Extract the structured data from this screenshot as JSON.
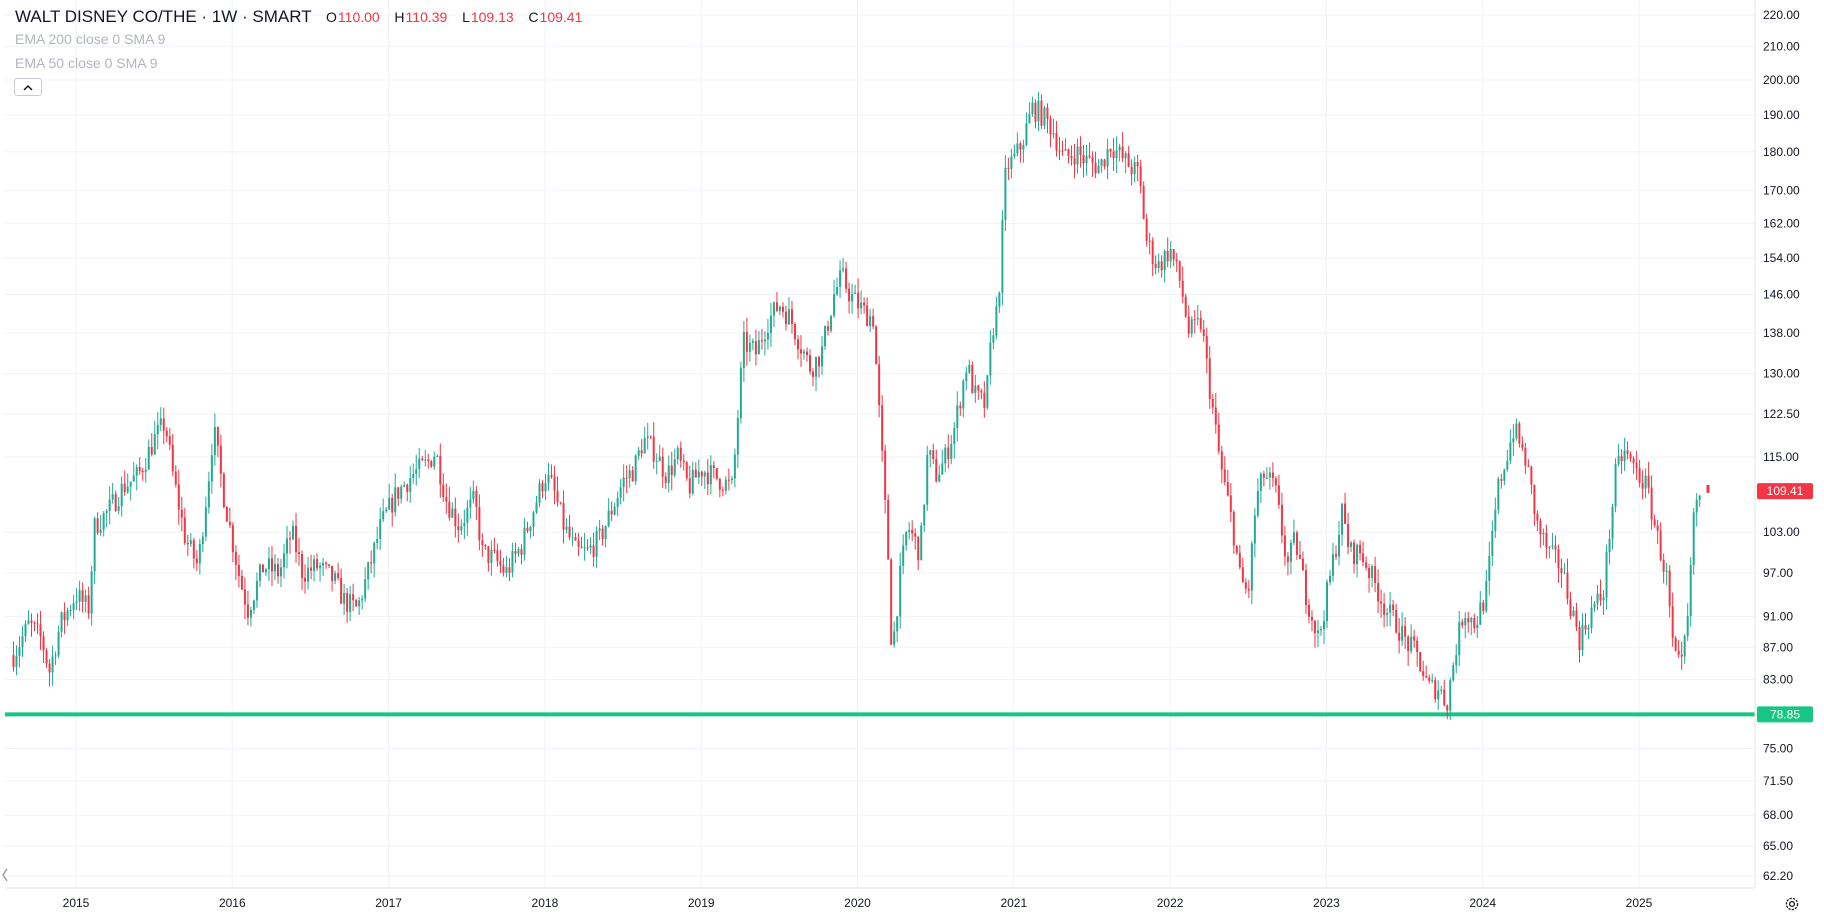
{
  "header": {
    "symbol": "WALT DISNEY CO/THE · 1W · SMART",
    "ohlc": [
      {
        "key": "O",
        "value": "110.00"
      },
      {
        "key": "H",
        "value": "110.39"
      },
      {
        "key": "L",
        "value": "109.13"
      },
      {
        "key": "C",
        "value": "109.41"
      }
    ]
  },
  "indicators": [
    {
      "name": "EMA 200",
      "params": "close 0 SMA 9"
    },
    {
      "name": "EMA 50",
      "params": "close 0 SMA 9"
    }
  ],
  "collapse_icon": "chevron-up-icon",
  "colors": {
    "up": "#22ab94",
    "down": "#f23645",
    "support_line": "#16c784",
    "grid": "#f0f3fa",
    "text": "#131722"
  },
  "chart_data": {
    "type": "candlestick",
    "title": "WALT DISNEY CO/THE · 1W · SMART",
    "interval": "1W",
    "xlim": [
      2014.55,
      2025.8
    ],
    "ylim": [
      60,
      225
    ],
    "y_scale": "log",
    "grid": true,
    "x_ticks": [
      "2015",
      "2016",
      "2017",
      "2018",
      "2019",
      "2020",
      "2021",
      "2022",
      "2023",
      "2024",
      "2025"
    ],
    "y_ticks": [
      "220.00",
      "210.00",
      "200.00",
      "190.00",
      "180.00",
      "170.00",
      "162.00",
      "154.00",
      "146.00",
      "138.00",
      "130.00",
      "122.50",
      "115.00",
      "109.41",
      "103.00",
      "97.00",
      "91.00",
      "87.00",
      "83.00",
      "78.85",
      "75.00",
      "71.50",
      "68.00",
      "65.00",
      "62.20"
    ],
    "price_axis_labels": [
      {
        "value": 109.41,
        "text": "109.41",
        "color": "#f23645"
      },
      {
        "value": 78.85,
        "text": "78.85",
        "color": "#16c784"
      }
    ],
    "horizontal_lines": [
      {
        "value": 78.85,
        "color": "#16c784"
      }
    ],
    "series_close": [
      [
        2014.6,
        86
      ],
      [
        2014.7,
        90
      ],
      [
        2014.78,
        88
      ],
      [
        2014.83,
        84
      ],
      [
        2014.9,
        90
      ],
      [
        2015.0,
        94
      ],
      [
        2015.08,
        92
      ],
      [
        2015.12,
        104
      ],
      [
        2015.2,
        106
      ],
      [
        2015.3,
        110
      ],
      [
        2015.4,
        112
      ],
      [
        2015.5,
        118
      ],
      [
        2015.57,
        121
      ],
      [
        2015.62,
        112
      ],
      [
        2015.7,
        102
      ],
      [
        2015.78,
        98
      ],
      [
        2015.85,
        112
      ],
      [
        2015.88,
        120
      ],
      [
        2015.95,
        108
      ],
      [
        2016.05,
        96
      ],
      [
        2016.1,
        92
      ],
      [
        2016.2,
        98
      ],
      [
        2016.3,
        97
      ],
      [
        2016.38,
        103
      ],
      [
        2016.45,
        97
      ],
      [
        2016.55,
        98
      ],
      [
        2016.65,
        96
      ],
      [
        2016.72,
        93
      ],
      [
        2016.8,
        92
      ],
      [
        2016.88,
        98
      ],
      [
        2016.95,
        104
      ],
      [
        2017.05,
        109
      ],
      [
        2017.15,
        112
      ],
      [
        2017.25,
        114
      ],
      [
        2017.3,
        116
      ],
      [
        2017.37,
        108
      ],
      [
        2017.45,
        104
      ],
      [
        2017.55,
        108
      ],
      [
        2017.6,
        100
      ],
      [
        2017.68,
        99
      ],
      [
        2017.75,
        97
      ],
      [
        2017.85,
        101
      ],
      [
        2017.92,
        106
      ],
      [
        2018.0,
        112
      ],
      [
        2018.05,
        110
      ],
      [
        2018.12,
        104
      ],
      [
        2018.2,
        100
      ],
      [
        2018.27,
        100
      ],
      [
        2018.35,
        102
      ],
      [
        2018.42,
        106
      ],
      [
        2018.5,
        111
      ],
      [
        2018.57,
        113
      ],
      [
        2018.63,
        118
      ],
      [
        2018.7,
        116
      ],
      [
        2018.78,
        112
      ],
      [
        2018.85,
        115
      ],
      [
        2018.92,
        110
      ],
      [
        2019.0,
        113
      ],
      [
        2019.07,
        112
      ],
      [
        2019.2,
        110
      ],
      [
        2019.27,
        136
      ],
      [
        2019.35,
        134
      ],
      [
        2019.42,
        140
      ],
      [
        2019.5,
        144
      ],
      [
        2019.57,
        141
      ],
      [
        2019.63,
        136
      ],
      [
        2019.7,
        131
      ],
      [
        2019.77,
        134
      ],
      [
        2019.85,
        146
      ],
      [
        2019.9,
        150
      ],
      [
        2019.95,
        146
      ],
      [
        2020.05,
        142
      ],
      [
        2020.1,
        141
      ],
      [
        2020.15,
        118
      ],
      [
        2020.2,
        98
      ],
      [
        2020.22,
        86
      ],
      [
        2020.27,
        96
      ],
      [
        2020.32,
        104
      ],
      [
        2020.4,
        100
      ],
      [
        2020.45,
        116
      ],
      [
        2020.5,
        112
      ],
      [
        2020.55,
        114
      ],
      [
        2020.62,
        120
      ],
      [
        2020.7,
        132
      ],
      [
        2020.75,
        126
      ],
      [
        2020.82,
        124
      ],
      [
        2020.86,
        138
      ],
      [
        2020.9,
        144
      ],
      [
        2020.95,
        176
      ],
      [
        2021.0,
        178
      ],
      [
        2021.05,
        182
      ],
      [
        2021.12,
        192
      ],
      [
        2021.18,
        190
      ],
      [
        2021.25,
        186
      ],
      [
        2021.32,
        178
      ],
      [
        2021.4,
        180
      ],
      [
        2021.45,
        178
      ],
      [
        2021.55,
        176
      ],
      [
        2021.62,
        182
      ],
      [
        2021.7,
        178
      ],
      [
        2021.8,
        174
      ],
      [
        2021.85,
        158
      ],
      [
        2021.92,
        152
      ],
      [
        2022.0,
        156
      ],
      [
        2022.07,
        148
      ],
      [
        2022.12,
        138
      ],
      [
        2022.2,
        140
      ],
      [
        2022.25,
        128
      ],
      [
        2022.32,
        114
      ],
      [
        2022.4,
        104
      ],
      [
        2022.45,
        96
      ],
      [
        2022.5,
        94
      ],
      [
        2022.55,
        108
      ],
      [
        2022.6,
        112
      ],
      [
        2022.67,
        110
      ],
      [
        2022.75,
        98
      ],
      [
        2022.8,
        102
      ],
      [
        2022.87,
        94
      ],
      [
        2022.95,
        88
      ],
      [
        2023.02,
        96
      ],
      [
        2023.1,
        106
      ],
      [
        2023.15,
        100
      ],
      [
        2023.22,
        100
      ],
      [
        2023.3,
        96
      ],
      [
        2023.38,
        92
      ],
      [
        2023.45,
        90
      ],
      [
        2023.5,
        88
      ],
      [
        2023.58,
        86
      ],
      [
        2023.65,
        82
      ],
      [
        2023.72,
        82
      ],
      [
        2023.77,
        80
      ],
      [
        2023.82,
        86
      ],
      [
        2023.88,
        92
      ],
      [
        2023.95,
        90
      ],
      [
        2024.02,
        94
      ],
      [
        2024.1,
        110
      ],
      [
        2024.2,
        120
      ],
      [
        2024.28,
        114
      ],
      [
        2024.35,
        104
      ],
      [
        2024.42,
        100
      ],
      [
        2024.5,
        98
      ],
      [
        2024.57,
        92
      ],
      [
        2024.62,
        88
      ],
      [
        2024.7,
        92
      ],
      [
        2024.77,
        94
      ],
      [
        2024.85,
        112
      ],
      [
        2024.9,
        116
      ],
      [
        2024.95,
        114
      ],
      [
        2025.05,
        110
      ],
      [
        2025.12,
        102
      ],
      [
        2025.18,
        96
      ],
      [
        2025.22,
        86
      ],
      [
        2025.27,
        84
      ],
      [
        2025.32,
        92
      ],
      [
        2025.35,
        106
      ],
      [
        2025.4,
        109.41
      ]
    ]
  }
}
